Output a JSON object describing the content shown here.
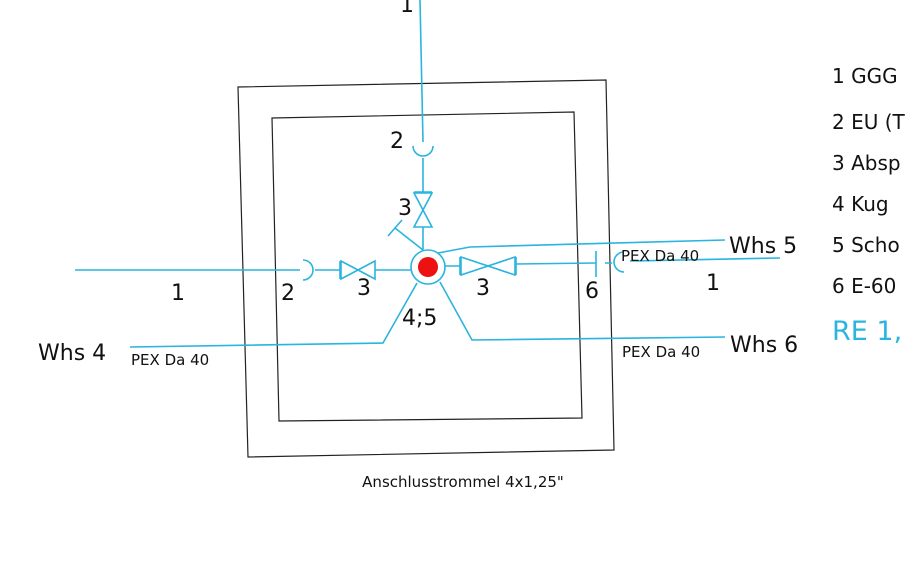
{
  "diagram": {
    "labels": [
      "1",
      "2",
      "3",
      "Whs 5",
      "PEX Da 40",
      "2",
      "3",
      "3",
      "6",
      "1",
      "1",
      "Whs 4",
      "PEX Da 40",
      "4;5",
      "Whs 6",
      "PEX Da 40"
    ],
    "caption": "Anschlusstrommel 4x1,25\"",
    "legend": [
      "1 GGG",
      "2 EU (T",
      "3 Absp",
      "4 Kug",
      "5 Scho",
      "6 E-60"
    ],
    "legend_highlight": "RE 1,"
  }
}
